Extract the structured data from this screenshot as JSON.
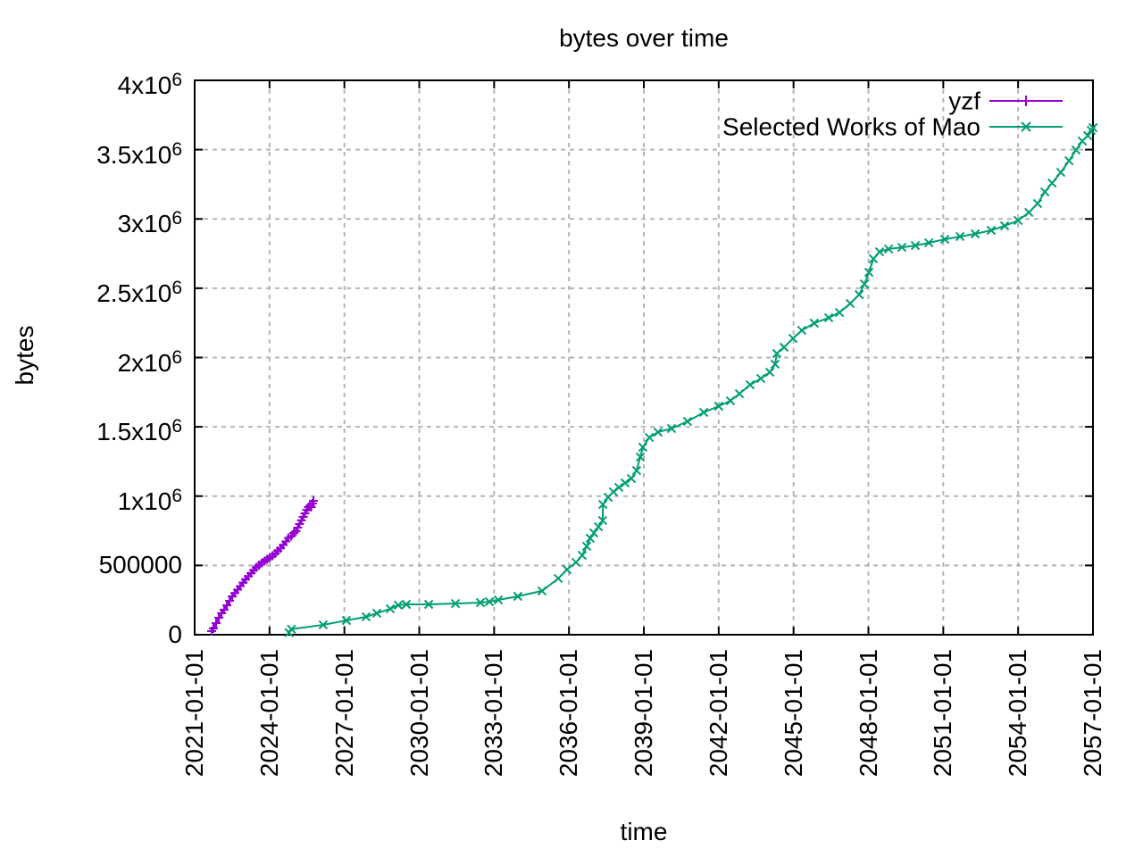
{
  "title": "bytes over time",
  "axes": {
    "x_label": "time",
    "y_label": "bytes"
  },
  "colors": {
    "background": "#ffffff",
    "border": "#000000",
    "grid": "#b5b5b5",
    "series1": "#9400d3",
    "series2": "#009e73",
    "text": "#000000"
  },
  "legend": {
    "position": "top-right-inside",
    "entries": [
      {
        "label": "yzf",
        "color": "#9400d3",
        "marker": "plus"
      },
      {
        "label": "Selected Works of Mao",
        "color": "#009e73",
        "marker": "cross"
      }
    ]
  },
  "chart_data": {
    "type": "line",
    "title": "bytes over time",
    "xlabel": "time",
    "ylabel": "bytes",
    "grid": true,
    "xlim": [
      2021.0,
      2057.0
    ],
    "ylim": [
      0,
      4000000
    ],
    "x_ticks": [
      {
        "year": 2021,
        "label": "2021-01-01"
      },
      {
        "year": 2024,
        "label": "2024-01-01"
      },
      {
        "year": 2027,
        "label": "2027-01-01"
      },
      {
        "year": 2030,
        "label": "2030-01-01"
      },
      {
        "year": 2033,
        "label": "2033-01-01"
      },
      {
        "year": 2036,
        "label": "2036-01-01"
      },
      {
        "year": 2039,
        "label": "2039-01-01"
      },
      {
        "year": 2042,
        "label": "2042-01-01"
      },
      {
        "year": 2045,
        "label": "2045-01-01"
      },
      {
        "year": 2048,
        "label": "2048-01-01"
      },
      {
        "year": 2051,
        "label": "2051-01-01"
      },
      {
        "year": 2054,
        "label": "2054-01-01"
      },
      {
        "year": 2057,
        "label": "2057-01-01"
      }
    ],
    "y_ticks": [
      {
        "value": 0,
        "base": "0",
        "sup": ""
      },
      {
        "value": 500000,
        "base": "500000",
        "sup": ""
      },
      {
        "value": 1000000,
        "base": "1x10",
        "sup": "6"
      },
      {
        "value": 1500000,
        "base": "1.5x10",
        "sup": "6"
      },
      {
        "value": 2000000,
        "base": "2x10",
        "sup": "6"
      },
      {
        "value": 2500000,
        "base": "2.5x10",
        "sup": "6"
      },
      {
        "value": 3000000,
        "base": "3x10",
        "sup": "6"
      },
      {
        "value": 3500000,
        "base": "3.5x10",
        "sup": "6"
      },
      {
        "value": 4000000,
        "base": "4x10",
        "sup": "6"
      }
    ],
    "series": [
      {
        "name": "yzf",
        "color": "#9400d3",
        "marker": "plus",
        "points": [
          [
            2021.68,
            26000
          ],
          [
            2021.75,
            45000
          ],
          [
            2021.86,
            84000
          ],
          [
            2021.97,
            122000
          ],
          [
            2022.08,
            155000
          ],
          [
            2022.18,
            180000
          ],
          [
            2022.29,
            212000
          ],
          [
            2022.4,
            245000
          ],
          [
            2022.51,
            277000
          ],
          [
            2022.61,
            300000
          ],
          [
            2022.72,
            325000
          ],
          [
            2022.83,
            351000
          ],
          [
            2022.94,
            376000
          ],
          [
            2023.04,
            399000
          ],
          [
            2023.15,
            422000
          ],
          [
            2023.26,
            444000
          ],
          [
            2023.37,
            467000
          ],
          [
            2023.47,
            486000
          ],
          [
            2023.58,
            502000
          ],
          [
            2023.69,
            518000
          ],
          [
            2023.8,
            531000
          ],
          [
            2023.9,
            544000
          ],
          [
            2024.01,
            557000
          ],
          [
            2024.12,
            570000
          ],
          [
            2024.23,
            586000
          ],
          [
            2024.33,
            605000
          ],
          [
            2024.44,
            624000
          ],
          [
            2024.55,
            647000
          ],
          [
            2024.66,
            673000
          ],
          [
            2024.76,
            699000
          ],
          [
            2024.87,
            712000
          ],
          [
            2024.98,
            734000
          ],
          [
            2025.06,
            747000
          ],
          [
            2025.13,
            773000
          ],
          [
            2025.2,
            799000
          ],
          [
            2025.28,
            825000
          ],
          [
            2025.35,
            850000
          ],
          [
            2025.42,
            875000
          ],
          [
            2025.49,
            901000
          ],
          [
            2025.56,
            921000
          ],
          [
            2025.63,
            934000
          ],
          [
            2025.67,
            921000
          ],
          [
            2025.72,
            947000
          ],
          [
            2025.76,
            966000
          ]
        ]
      },
      {
        "name": "Selected Works of Mao",
        "color": "#009e73",
        "marker": "cross",
        "points": [
          [
            2024.78,
            15000
          ],
          [
            2024.88,
            40000
          ],
          [
            2026.15,
            71000
          ],
          [
            2027.08,
            103000
          ],
          [
            2027.87,
            129000
          ],
          [
            2028.3,
            155000
          ],
          [
            2028.84,
            187000
          ],
          [
            2029.16,
            213000
          ],
          [
            2029.48,
            219000
          ],
          [
            2030.38,
            219000
          ],
          [
            2031.45,
            225000
          ],
          [
            2032.45,
            232000
          ],
          [
            2032.81,
            238000
          ],
          [
            2033.17,
            251000
          ],
          [
            2033.95,
            277000
          ],
          [
            2034.92,
            316000
          ],
          [
            2035.57,
            406000
          ],
          [
            2035.92,
            470000
          ],
          [
            2036.28,
            522000
          ],
          [
            2036.53,
            573000
          ],
          [
            2036.71,
            638000
          ],
          [
            2036.85,
            696000
          ],
          [
            2037.0,
            734000
          ],
          [
            2037.18,
            779000
          ],
          [
            2037.35,
            824000
          ],
          [
            2037.36,
            940000
          ],
          [
            2037.57,
            992000
          ],
          [
            2037.78,
            1031000
          ],
          [
            2038.0,
            1063000
          ],
          [
            2038.25,
            1095000
          ],
          [
            2038.5,
            1127000
          ],
          [
            2038.71,
            1185000
          ],
          [
            2038.86,
            1282000
          ],
          [
            2038.96,
            1353000
          ],
          [
            2039.22,
            1423000
          ],
          [
            2039.57,
            1462000
          ],
          [
            2040.11,
            1488000
          ],
          [
            2040.75,
            1539000
          ],
          [
            2041.4,
            1604000
          ],
          [
            2042.0,
            1649000
          ],
          [
            2042.47,
            1688000
          ],
          [
            2042.83,
            1739000
          ],
          [
            2043.26,
            1803000
          ],
          [
            2043.69,
            1849000
          ],
          [
            2044.05,
            1894000
          ],
          [
            2044.26,
            1952000
          ],
          [
            2044.33,
            2029000
          ],
          [
            2044.62,
            2074000
          ],
          [
            2044.98,
            2138000
          ],
          [
            2045.33,
            2196000
          ],
          [
            2045.83,
            2248000
          ],
          [
            2046.41,
            2287000
          ],
          [
            2046.84,
            2325000
          ],
          [
            2047.27,
            2390000
          ],
          [
            2047.63,
            2454000
          ],
          [
            2047.84,
            2531000
          ],
          [
            2048.02,
            2615000
          ],
          [
            2048.2,
            2712000
          ],
          [
            2048.45,
            2763000
          ],
          [
            2048.81,
            2783000
          ],
          [
            2049.34,
            2795000
          ],
          [
            2049.88,
            2808000
          ],
          [
            2050.42,
            2828000
          ],
          [
            2051.06,
            2853000
          ],
          [
            2051.67,
            2873000
          ],
          [
            2052.28,
            2892000
          ],
          [
            2052.92,
            2918000
          ],
          [
            2053.46,
            2950000
          ],
          [
            2054.0,
            2989000
          ],
          [
            2054.43,
            3047000
          ],
          [
            2054.78,
            3111000
          ],
          [
            2055.07,
            3195000
          ],
          [
            2055.36,
            3259000
          ],
          [
            2055.71,
            3336000
          ],
          [
            2056.04,
            3420000
          ],
          [
            2056.32,
            3497000
          ],
          [
            2056.57,
            3562000
          ],
          [
            2056.79,
            3601000
          ],
          [
            2056.93,
            3639000
          ],
          [
            2057.0,
            3658000
          ]
        ]
      }
    ]
  }
}
